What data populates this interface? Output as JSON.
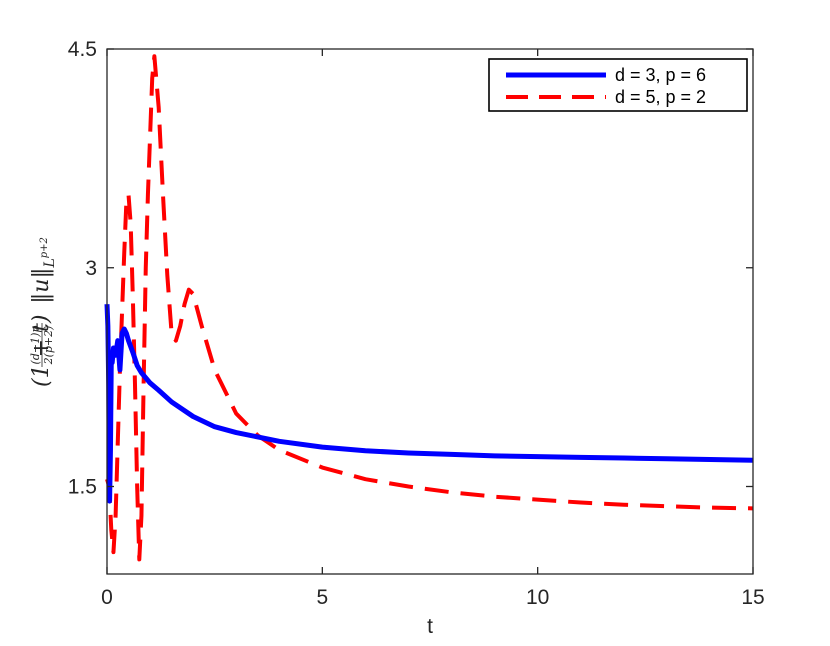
{
  "chart_data": {
    "type": "line",
    "title": "",
    "xlabel": "t",
    "ylabel": {
      "prefix": "(1 + t)",
      "exp_numerator": "(d−1)p",
      "exp_denominator": "2(p+2)",
      "norm": "‖u‖",
      "subscript": "L",
      "subscript_sup": "p+2"
    },
    "xlim": [
      0,
      15
    ],
    "ylim": [
      0.9,
      4.5
    ],
    "xticks": [
      0,
      5,
      10,
      15
    ],
    "xtick_labels": [
      "0",
      "5",
      "10",
      "15"
    ],
    "yticks": [
      1.5,
      3,
      4.5
    ],
    "ytick_labels": [
      "1.5",
      "3",
      "4.5"
    ],
    "grid": false,
    "legend_position": "top-right",
    "series": [
      {
        "name": "d = 3, p = 6",
        "color": "#0000ff",
        "style": "solid",
        "x": [
          0,
          0.02,
          0.04,
          0.05,
          0.06,
          0.08,
          0.1,
          0.12,
          0.15,
          0.2,
          0.25,
          0.3,
          0.35,
          0.4,
          0.45,
          0.5,
          0.6,
          0.7,
          0.8,
          1.0,
          1.2,
          1.5,
          2.0,
          2.5,
          3.0,
          3.5,
          4.0,
          5.0,
          6.0,
          7.0,
          8.0,
          9.0,
          10.0,
          11.0,
          12.0,
          13.0,
          14.0,
          15.0
        ],
        "values": [
          2.75,
          2.6,
          2.2,
          1.8,
          1.4,
          1.75,
          2.4,
          2.35,
          2.45,
          2.4,
          2.5,
          2.3,
          2.55,
          2.58,
          2.55,
          2.5,
          2.42,
          2.33,
          2.28,
          2.21,
          2.16,
          2.08,
          1.98,
          1.91,
          1.87,
          1.84,
          1.81,
          1.77,
          1.745,
          1.73,
          1.72,
          1.71,
          1.705,
          1.7,
          1.695,
          1.69,
          1.685,
          1.68
        ]
      },
      {
        "name": "d = 5, p = 2",
        "color": "#ff0000",
        "style": "dashed",
        "x": [
          0,
          0.05,
          0.1,
          0.15,
          0.2,
          0.25,
          0.3,
          0.35,
          0.4,
          0.45,
          0.5,
          0.55,
          0.6,
          0.65,
          0.7,
          0.75,
          0.8,
          0.85,
          0.9,
          0.95,
          1.0,
          1.05,
          1.1,
          1.2,
          1.3,
          1.4,
          1.5,
          1.6,
          1.7,
          1.8,
          1.9,
          2.0,
          2.2,
          2.5,
          3.0,
          3.5,
          4.0,
          5.0,
          6.0,
          7.0,
          8.0,
          9.0,
          10.0,
          11.0,
          12.0,
          13.0,
          14.0,
          15.0
        ],
        "values": [
          1.55,
          1.5,
          1.2,
          1.05,
          1.3,
          1.8,
          2.3,
          2.7,
          3.1,
          3.45,
          3.5,
          3.3,
          2.8,
          2.2,
          1.5,
          1.0,
          1.3,
          2.2,
          3.0,
          3.5,
          3.9,
          4.3,
          4.45,
          4.1,
          3.5,
          2.95,
          2.55,
          2.5,
          2.6,
          2.75,
          2.85,
          2.82,
          2.6,
          2.3,
          2.0,
          1.85,
          1.75,
          1.63,
          1.55,
          1.5,
          1.46,
          1.43,
          1.41,
          1.39,
          1.375,
          1.365,
          1.355,
          1.35
        ]
      }
    ]
  }
}
